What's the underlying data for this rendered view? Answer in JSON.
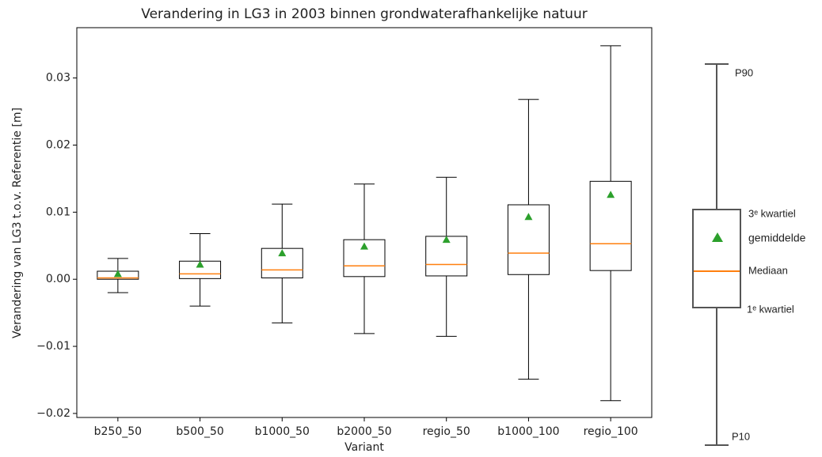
{
  "chart_data": {
    "type": "box",
    "title": "Verandering in LG3 in 2003 binnen grondwaterafhankelijke natuur",
    "x_label": "Variant",
    "y_label": "Verandering van LG3 t.o.v. Referentie [m]",
    "categories": [
      "b250_50",
      "b500_50",
      "b1000_50",
      "b2000_50",
      "regio_50",
      "b1000_100",
      "regio_100"
    ],
    "whisker_low": [
      -0.002,
      -0.004,
      -0.0065,
      -0.0081,
      -0.0085,
      -0.0149,
      -0.0181
    ],
    "q1": [
      0.0,
      0.0001,
      0.0002,
      0.0004,
      0.0005,
      0.0007,
      0.0013
    ],
    "median": [
      0.0002,
      0.0008,
      0.0014,
      0.002,
      0.0022,
      0.0039,
      0.0053
    ],
    "q3": [
      0.0012,
      0.0027,
      0.0046,
      0.0059,
      0.0064,
      0.0111,
      0.0146
    ],
    "whisker_high": [
      0.0031,
      0.0068,
      0.0112,
      0.0142,
      0.0152,
      0.0268,
      0.0348
    ],
    "mean": [
      0.0008,
      0.0022,
      0.0039,
      0.0049,
      0.0059,
      0.0093,
      0.0126
    ],
    "median_color": "#ff7f0e",
    "mean_color": "#2ca02c",
    "box_color": "#000000",
    "ylim": [
      -0.0206,
      0.0375
    ],
    "yticks": [
      {
        "value": -0.02,
        "label": "−0.02"
      },
      {
        "value": -0.01,
        "label": "−0.01"
      },
      {
        "value": 0,
        "label": "0.00"
      },
      {
        "value": 0.01,
        "label": "0.01"
      },
      {
        "value": 0.02,
        "label": "0.02"
      },
      {
        "value": 0.03,
        "label": "0.03"
      }
    ],
    "grid": false
  },
  "legend_diagram": {
    "p90": "P90",
    "q3": "3ᵉ kwartiel",
    "mean": "gemiddelde",
    "median": "Mediaan",
    "q1": "1ᵉ kwartiel",
    "p10": "P10"
  }
}
